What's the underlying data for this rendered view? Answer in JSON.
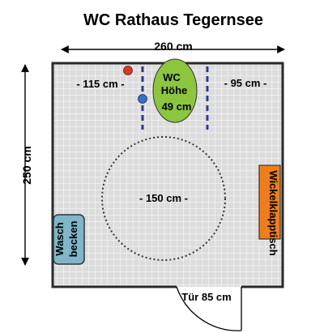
{
  "title": "WC Rathaus Tegernsee",
  "dimensions": {
    "width": "260 cm",
    "depth": "250 cm",
    "left_clearance": "- 115 cm -",
    "right_clearance": "- 95 cm -",
    "turning_circle": "- 150 cm -",
    "door": "Tür 85 cm"
  },
  "fixtures": {
    "wc_line1": "WC",
    "wc_line2": "Höhe",
    "wc_line3": "49 cm",
    "sink_line1": "Wasch",
    "sink_line2": "becken",
    "changing_table": "Wickelklapptisch"
  },
  "colors": {
    "floor": "#dcdcdc",
    "grid": "#ffffff",
    "wall": "#2a2a2a",
    "wc": "#8cc63f",
    "sink": "#7fb6c9",
    "changing_table": "#ef7d1a",
    "grab_bar": "#2b3a8c",
    "red_button": "#e63222",
    "blue_button": "#2f6fd0"
  }
}
